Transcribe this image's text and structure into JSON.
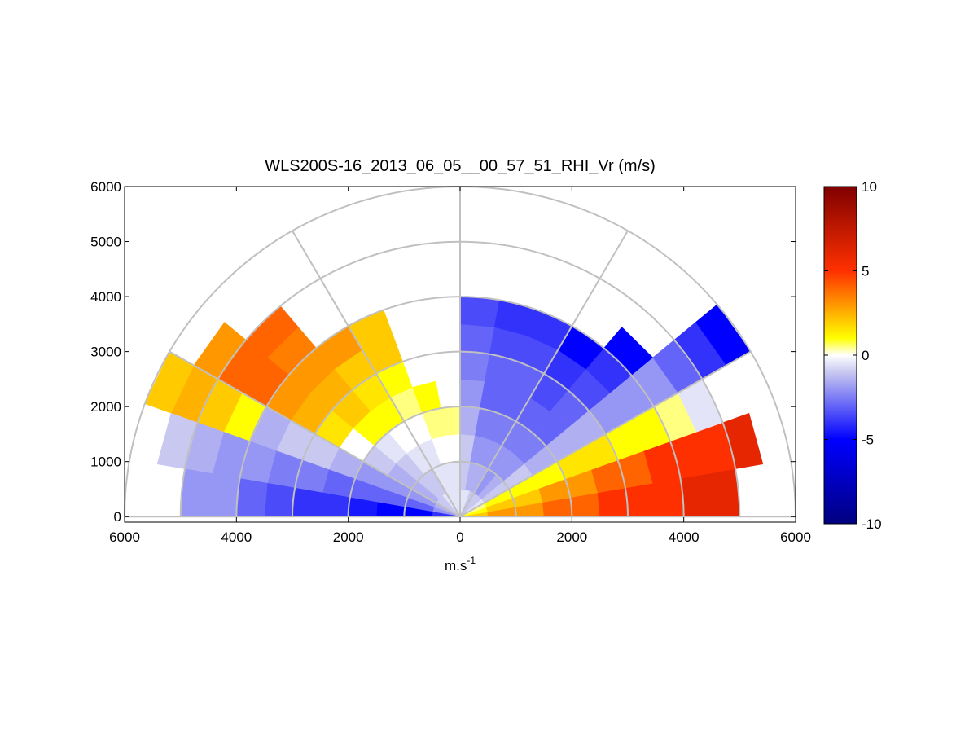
{
  "chart_data": {
    "type": "polar-heatmap",
    "title": "WLS200S-16_2013_06_05__00_57_51_RHI_Vr (m/s)",
    "x_label": "m.s",
    "x_label_sup": "-1",
    "xlim": [
      -6000,
      6000
    ],
    "xticks": [
      {
        "value": -6000,
        "label": "6000"
      },
      {
        "value": -4000,
        "label": "4000"
      },
      {
        "value": -2000,
        "label": "2000"
      },
      0,
      2000,
      4000,
      6000
    ],
    "ylim": [
      -100,
      6000
    ],
    "yticks": [
      0,
      1000,
      2000,
      3000,
      4000,
      5000,
      6000
    ],
    "angles": [
      5,
      15,
      25,
      35,
      45,
      55,
      65,
      75,
      85,
      95,
      105,
      115,
      125,
      135,
      145,
      155,
      165,
      175
    ],
    "ranges": [
      250,
      750,
      1250,
      1750,
      2250,
      2750,
      3250,
      3750,
      4250,
      4750,
      5250,
      5750
    ],
    "values": [
      [
        2,
        3,
        3,
        4,
        4,
        5,
        5,
        5,
        6,
        6,
        null,
        null
      ],
      [
        1,
        2,
        2,
        3,
        3,
        4,
        4,
        5,
        5,
        5,
        6,
        null
      ],
      [
        0.5,
        1,
        1,
        1,
        1.5,
        1.5,
        1,
        1,
        0.5,
        -0.5,
        null,
        null
      ],
      [
        -0.5,
        -1,
        -1,
        -1.5,
        -1.5,
        -1.5,
        -2,
        -2,
        -2,
        -3,
        -4,
        -5
      ],
      [
        -1,
        -1.5,
        -2,
        -2.5,
        -3,
        -3,
        -3.5,
        -4,
        -5,
        null,
        null,
        null
      ],
      [
        -1,
        -2,
        -2,
        -2.5,
        -3,
        -3.5,
        -4,
        -5,
        null,
        null,
        null,
        null
      ],
      [
        -1,
        -1.5,
        -2,
        -2.5,
        -3,
        -3,
        -3.5,
        -4,
        null,
        null,
        null,
        null
      ],
      [
        -0.5,
        -1.5,
        -2,
        -2.5,
        -3,
        -3,
        -3.5,
        -4,
        null,
        null,
        null,
        null
      ],
      [
        -0.5,
        -1,
        -1,
        -1.5,
        -2,
        -2.5,
        -3,
        -3.5,
        null,
        null,
        null,
        null
      ],
      [
        -0.5,
        -0.5,
        0,
        0.5,
        null,
        null,
        null,
        null,
        null,
        null,
        null,
        null
      ],
      [
        -0.5,
        -0.5,
        0,
        0.5,
        1,
        null,
        null,
        null,
        null,
        null,
        null,
        null
      ],
      [
        -0.5,
        -0.5,
        -0.5,
        0,
        0.5,
        1,
        2,
        2,
        null,
        null,
        null,
        null
      ],
      [
        -0.5,
        -1,
        -0.5,
        0,
        1,
        1.5,
        2,
        3,
        null,
        null,
        null,
        null
      ],
      [
        -1,
        -1,
        -1,
        -0.5,
        1,
        2,
        2.5,
        3,
        3.5,
        4,
        null,
        null
      ],
      [
        -1,
        -1.5,
        -1.5,
        -1,
        0,
        1.5,
        2.5,
        3,
        4,
        4,
        3,
        null
      ],
      [
        -1.5,
        -2,
        -2,
        -2,
        -1.5,
        -1,
        -1,
        -1.5,
        1,
        2,
        2.5,
        2
      ],
      [
        -2,
        -3,
        -3,
        -3,
        -3,
        -2.5,
        -2.5,
        -2,
        -2,
        -1.5,
        -1,
        null
      ],
      [
        -4,
        -5,
        -5,
        -4.5,
        -4,
        -4,
        -3.5,
        -3,
        -2,
        -2,
        null,
        null
      ]
    ],
    "clim": [
      -10,
      10
    ],
    "cticks": [
      10,
      5,
      0,
      -5,
      -10
    ],
    "colormap": [
      [
        -10,
        "#000080"
      ],
      [
        -5,
        "#0000ff"
      ],
      [
        -1,
        "#c8c8f0"
      ],
      [
        0,
        "#ffffff"
      ],
      [
        1,
        "#ffff00"
      ],
      [
        5,
        "#ff3000"
      ],
      [
        10,
        "#800000"
      ]
    ]
  }
}
